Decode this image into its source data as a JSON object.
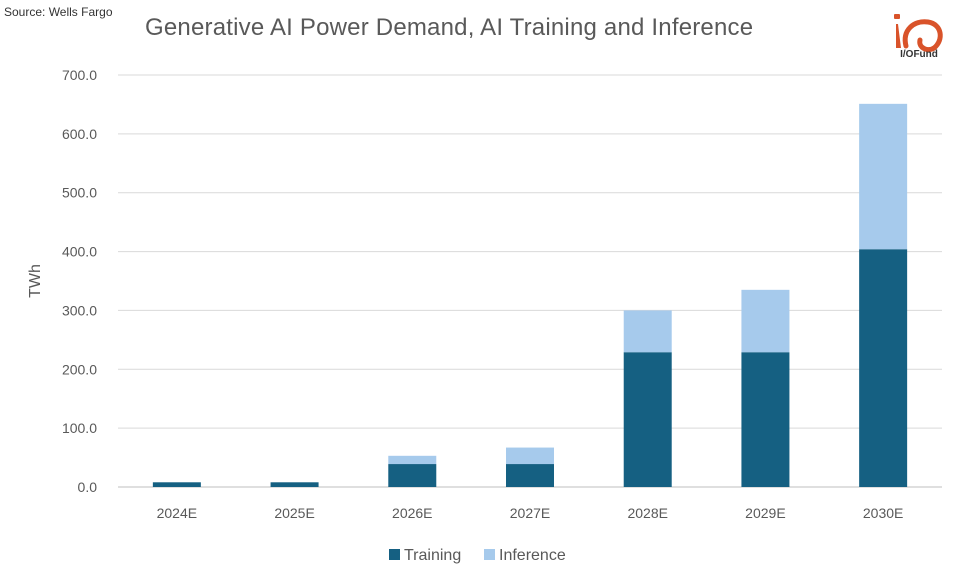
{
  "source": "Source: Wells Fargo",
  "logo": {
    "text": "I/OFund",
    "color": "#d9532a"
  },
  "chart_data": {
    "type": "bar",
    "stacked": true,
    "title": "Generative AI Power Demand, AI Training and Inference",
    "xlabel": "",
    "ylabel": "TWh",
    "ylim": [
      0,
      700
    ],
    "yticks": [
      0,
      100,
      200,
      300,
      400,
      500,
      600,
      700
    ],
    "ytick_labels": [
      "0.0",
      "100.0",
      "200.0",
      "300.0",
      "400.0",
      "500.0",
      "600.0",
      "700.0"
    ],
    "grid": true,
    "legend_position": "bottom",
    "categories": [
      "2024E",
      "2025E",
      "2026E",
      "2027E",
      "2028E",
      "2029E",
      "2030E"
    ],
    "series": [
      {
        "name": "Training",
        "color": "#156082",
        "values": [
          8,
          8,
          39,
          39,
          229,
          229,
          404
        ]
      },
      {
        "name": "Inference",
        "color": "#a6caec",
        "values": [
          0,
          0,
          14,
          28,
          71,
          106,
          247
        ]
      }
    ]
  }
}
